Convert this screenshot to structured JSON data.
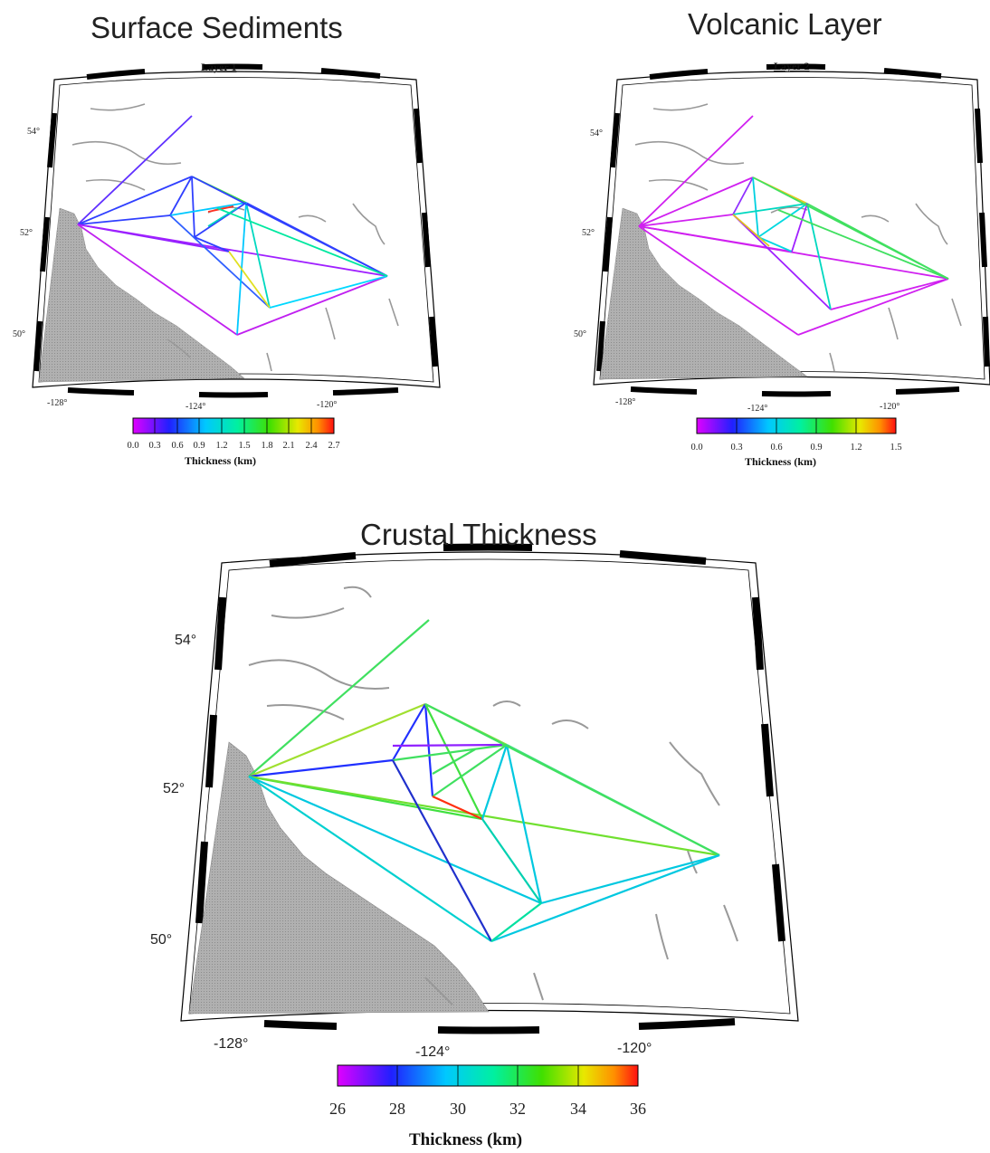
{
  "panels": [
    {
      "id": "sediments",
      "title": "Surface Sediments",
      "layer_label": "Layer 1",
      "lat_labels": [
        "54°",
        "52°",
        "50°"
      ],
      "lon_labels": [
        "-128°",
        "-124°",
        "-120°"
      ],
      "colorbar": {
        "title": "Thickness (km)",
        "ticks": [
          "0.0",
          "0.3",
          "0.6",
          "0.9",
          "1.2",
          "1.5",
          "1.8",
          "2.1",
          "2.4",
          "2.7"
        ],
        "range": [
          0.0,
          2.7
        ]
      }
    },
    {
      "id": "volcanic",
      "title": "Volcanic Layer",
      "layer_label": "Layer 2",
      "lat_labels": [
        "54°",
        "52°",
        "50°"
      ],
      "lon_labels": [
        "-128°",
        "-124°",
        "-120°"
      ],
      "colorbar": {
        "title": "Thickness (km)",
        "ticks": [
          "0.0",
          "0.3",
          "0.6",
          "0.9",
          "1.2",
          "1.5"
        ],
        "range": [
          0.0,
          1.5
        ]
      }
    },
    {
      "id": "crustal",
      "title": "Crustal Thickness",
      "layer_label": "",
      "lat_labels": [
        "54°",
        "52°",
        "50°"
      ],
      "lon_labels": [
        "-128°",
        "-124°",
        "-120°"
      ],
      "colorbar": {
        "title": "Thickness (km)",
        "ticks": [
          "26",
          "28",
          "30",
          "32",
          "34",
          "36"
        ],
        "range": [
          26,
          36
        ]
      }
    }
  ],
  "colors": {
    "land": "#a8a8a8",
    "frame": "#000000",
    "background": "#ffffff",
    "rivers": "#9a9a9a"
  }
}
